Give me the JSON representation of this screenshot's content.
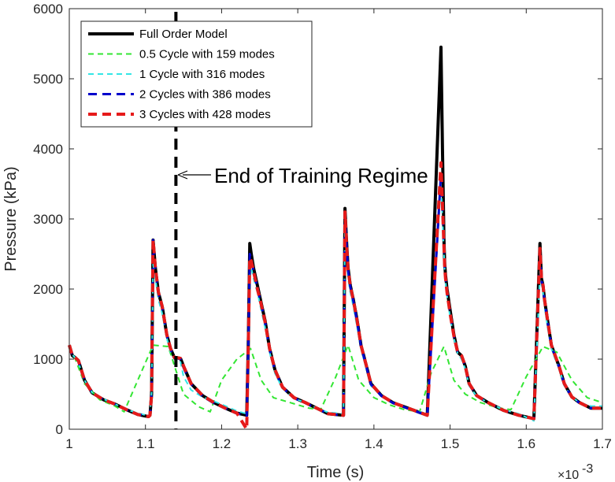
{
  "chart_data": {
    "type": "line",
    "title": "",
    "xlabel": "Time (s)",
    "ylabel": "Pressure (kPa)",
    "x_exponent": "×10⁻³",
    "x_exponent_base": "×10",
    "x_exponent_power": "-3",
    "xlim": [
      1.0,
      1.7
    ],
    "ylim": [
      0,
      6000
    ],
    "xticks": [
      1.0,
      1.1,
      1.2,
      1.3,
      1.4,
      1.5,
      1.6,
      1.7
    ],
    "xtick_labels": [
      "1",
      "1.1",
      "1.2",
      "1.3",
      "1.4",
      "1.5",
      "1.6",
      "1.7"
    ],
    "yticks": [
      0,
      1000,
      2000,
      3000,
      4000,
      5000,
      6000
    ],
    "ytick_labels": [
      "0",
      "1000",
      "2000",
      "3000",
      "4000",
      "5000",
      "6000"
    ],
    "legend_position": "top-left",
    "training_boundary_x": 1.14,
    "annotation": {
      "text": "End of Training Regime",
      "x": 1.142,
      "y": 3630
    },
    "series": [
      {
        "name": "Full Order Model",
        "color": "#000000",
        "style": "solid",
        "width": 4,
        "x": [
          1.0,
          1.004,
          1.008,
          1.012,
          1.02,
          1.03,
          1.045,
          1.06,
          1.075,
          1.09,
          1.104,
          1.106,
          1.108,
          1.11,
          1.113,
          1.117,
          1.122,
          1.128,
          1.133,
          1.138,
          1.142,
          1.146,
          1.15,
          1.16,
          1.175,
          1.19,
          1.205,
          1.22,
          1.233,
          1.235,
          1.237,
          1.239,
          1.242,
          1.247,
          1.252,
          1.257,
          1.263,
          1.27,
          1.28,
          1.295,
          1.31,
          1.325,
          1.34,
          1.36,
          1.362,
          1.364,
          1.366,
          1.369,
          1.373,
          1.378,
          1.383,
          1.389,
          1.396,
          1.41,
          1.425,
          1.44,
          1.455,
          1.47,
          1.488,
          1.49,
          1.492,
          1.493,
          1.494,
          1.496,
          1.5,
          1.505,
          1.51,
          1.515,
          1.52,
          1.525,
          1.535,
          1.55,
          1.57,
          1.59,
          1.61,
          1.618,
          1.62,
          1.622,
          1.624,
          1.628,
          1.633,
          1.638,
          1.643,
          1.65,
          1.66,
          1.67,
          1.685,
          1.7
        ],
        "y": [
          1200,
          1050,
          1020,
          980,
          700,
          520,
          420,
          360,
          280,
          210,
          180,
          200,
          500,
          2700,
          2300,
          1950,
          1750,
          1350,
          1150,
          1020,
          1020,
          1010,
          900,
          650,
          480,
          380,
          300,
          230,
          200,
          1200,
          2650,
          2500,
          2300,
          2050,
          1800,
          1550,
          1150,
          850,
          600,
          450,
          380,
          300,
          220,
          200,
          3150,
          2700,
          2300,
          2050,
          1850,
          1550,
          1200,
          950,
          650,
          480,
          380,
          320,
          260,
          200,
          5450,
          4000,
          2700,
          2350,
          2200,
          2000,
          1700,
          1350,
          1100,
          1050,
          900,
          650,
          480,
          380,
          270,
          200,
          150,
          2650,
          2150,
          2050,
          1850,
          1550,
          1200,
          1050,
          900,
          650,
          460,
          380,
          300,
          300
        ]
      },
      {
        "name": "0.5 Cycle with 159 modes",
        "color": "#33e633",
        "style": "dashed",
        "width": 2,
        "x": [
          1.0,
          1.008,
          1.02,
          1.04,
          1.06,
          1.072,
          1.09,
          1.11,
          1.13,
          1.15,
          1.17,
          1.185,
          1.2,
          1.22,
          1.238,
          1.252,
          1.268,
          1.29,
          1.315,
          1.33,
          1.35,
          1.366,
          1.38,
          1.4,
          1.42,
          1.44,
          1.46,
          1.475,
          1.492,
          1.505,
          1.52,
          1.54,
          1.565,
          1.58,
          1.6,
          1.622,
          1.64,
          1.66,
          1.68,
          1.7
        ],
        "y": [
          1150,
          1000,
          650,
          420,
          330,
          250,
          700,
          1200,
          1180,
          500,
          320,
          250,
          700,
          1000,
          1150,
          700,
          450,
          380,
          300,
          280,
          750,
          1200,
          700,
          450,
          350,
          280,
          250,
          800,
          1180,
          700,
          500,
          380,
          300,
          280,
          750,
          1180,
          1100,
          700,
          450,
          380
        ]
      },
      {
        "name": "1 Cycle with 316 modes",
        "color": "#33e6e6",
        "style": "dashed",
        "width": 2,
        "x": [
          1.0,
          1.004,
          1.008,
          1.012,
          1.02,
          1.03,
          1.045,
          1.06,
          1.075,
          1.09,
          1.104,
          1.106,
          1.108,
          1.11,
          1.113,
          1.117,
          1.122,
          1.128,
          1.133,
          1.138,
          1.142,
          1.146,
          1.15,
          1.16,
          1.175,
          1.19,
          1.205,
          1.22,
          1.233,
          1.235,
          1.237,
          1.239,
          1.242,
          1.247,
          1.252,
          1.257,
          1.263,
          1.27,
          1.28,
          1.295,
          1.31,
          1.325,
          1.34,
          1.36,
          1.362,
          1.364,
          1.366,
          1.369,
          1.373,
          1.378,
          1.383,
          1.389,
          1.396,
          1.41,
          1.425,
          1.44,
          1.455,
          1.47,
          1.488,
          1.49,
          1.492,
          1.493,
          1.494,
          1.496,
          1.5,
          1.505,
          1.51,
          1.515,
          1.52,
          1.525,
          1.535,
          1.55,
          1.57,
          1.59,
          1.61,
          1.618,
          1.62,
          1.622,
          1.624,
          1.628,
          1.633,
          1.638,
          1.643,
          1.65,
          1.66,
          1.67,
          1.685,
          1.7
        ],
        "y": [
          1180,
          1060,
          1020,
          950,
          700,
          520,
          430,
          360,
          280,
          230,
          190,
          230,
          520,
          2350,
          2150,
          1850,
          1650,
          1300,
          1100,
          1000,
          990,
          960,
          750,
          560,
          460,
          400,
          330,
          260,
          220,
          1100,
          2350,
          2300,
          2150,
          1950,
          1700,
          1450,
          1100,
          800,
          580,
          440,
          380,
          300,
          240,
          220,
          2900,
          2500,
          2150,
          1950,
          1750,
          1450,
          1150,
          900,
          620,
          470,
          380,
          320,
          260,
          220,
          3500,
          3000,
          2500,
          2250,
          2100,
          1900,
          1600,
          1300,
          1080,
          1000,
          860,
          620,
          470,
          380,
          280,
          220,
          120,
          2250,
          2050,
          1950,
          1750,
          1450,
          1150,
          1000,
          880,
          620,
          460,
          380,
          330,
          330
        ]
      },
      {
        "name": "2 Cycles with 386 modes",
        "color": "#0000cc",
        "style": "dashed",
        "width": 3,
        "x": [
          1.0,
          1.004,
          1.008,
          1.012,
          1.02,
          1.03,
          1.045,
          1.06,
          1.075,
          1.09,
          1.104,
          1.106,
          1.108,
          1.11,
          1.113,
          1.117,
          1.122,
          1.128,
          1.133,
          1.138,
          1.142,
          1.146,
          1.15,
          1.16,
          1.175,
          1.19,
          1.205,
          1.22,
          1.233,
          1.235,
          1.237,
          1.239,
          1.242,
          1.247,
          1.252,
          1.257,
          1.263,
          1.27,
          1.28,
          1.295,
          1.31,
          1.325,
          1.34,
          1.36,
          1.362,
          1.364,
          1.366,
          1.369,
          1.373,
          1.378,
          1.383,
          1.389,
          1.396,
          1.41,
          1.425,
          1.44,
          1.455,
          1.47,
          1.488,
          1.49,
          1.492,
          1.493,
          1.494,
          1.496,
          1.5,
          1.505,
          1.51,
          1.515,
          1.52,
          1.525,
          1.535,
          1.55,
          1.57,
          1.59,
          1.61,
          1.618,
          1.62,
          1.622,
          1.624,
          1.628,
          1.633,
          1.638,
          1.643,
          1.65,
          1.66,
          1.67,
          1.685,
          1.7
        ],
        "y": [
          1190,
          1050,
          1020,
          970,
          690,
          520,
          420,
          355,
          275,
          215,
          185,
          205,
          510,
          2700,
          2280,
          1930,
          1730,
          1340,
          1140,
          1010,
          1010,
          1000,
          880,
          640,
          470,
          370,
          295,
          225,
          195,
          1150,
          2500,
          2420,
          2260,
          2020,
          1780,
          1530,
          1140,
          840,
          595,
          445,
          375,
          295,
          220,
          195,
          3050,
          2650,
          2270,
          2030,
          1830,
          1530,
          1190,
          940,
          640,
          475,
          375,
          315,
          255,
          195,
          3650,
          3150,
          2600,
          2300,
          2150,
          1950,
          1650,
          1320,
          1090,
          1040,
          890,
          640,
          475,
          375,
          270,
          200,
          150,
          2500,
          2120,
          2020,
          1830,
          1530,
          1190,
          1040,
          890,
          640,
          455,
          375,
          300,
          300
        ]
      },
      {
        "name": "3 Cycles with 428 modes",
        "color": "#e61a1a",
        "style": "dashed",
        "width": 4,
        "x": [
          1.0,
          1.004,
          1.008,
          1.012,
          1.02,
          1.03,
          1.045,
          1.06,
          1.075,
          1.09,
          1.104,
          1.106,
          1.108,
          1.11,
          1.113,
          1.117,
          1.122,
          1.128,
          1.133,
          1.138,
          1.142,
          1.146,
          1.15,
          1.16,
          1.175,
          1.19,
          1.205,
          1.22,
          1.233,
          1.235,
          1.237,
          1.239,
          1.242,
          1.247,
          1.252,
          1.257,
          1.263,
          1.27,
          1.28,
          1.295,
          1.31,
          1.325,
          1.34,
          1.36,
          1.362,
          1.364,
          1.366,
          1.369,
          1.373,
          1.378,
          1.383,
          1.389,
          1.396,
          1.41,
          1.425,
          1.44,
          1.455,
          1.47,
          1.488,
          1.49,
          1.492,
          1.493,
          1.494,
          1.496,
          1.5,
          1.505,
          1.51,
          1.515,
          1.52,
          1.525,
          1.535,
          1.55,
          1.57,
          1.59,
          1.61,
          1.618,
          1.62,
          1.622,
          1.624,
          1.628,
          1.633,
          1.638,
          1.643,
          1.65,
          1.66,
          1.67,
          1.685,
          1.7
        ],
        "y": [
          1200,
          1050,
          1020,
          980,
          700,
          520,
          420,
          360,
          280,
          210,
          180,
          200,
          500,
          2700,
          2300,
          1950,
          1750,
          1350,
          1150,
          1020,
          1020,
          1010,
          900,
          650,
          480,
          380,
          300,
          230,
          0,
          1200,
          2450,
          2400,
          2250,
          2000,
          1780,
          1530,
          1150,
          850,
          600,
          450,
          380,
          300,
          220,
          200,
          3100,
          2650,
          2280,
          2040,
          1840,
          1540,
          1200,
          950,
          650,
          480,
          380,
          320,
          260,
          200,
          3800,
          3200,
          2600,
          2300,
          2150,
          1950,
          1650,
          1330,
          1100,
          1050,
          900,
          650,
          480,
          380,
          270,
          200,
          150,
          2580,
          2150,
          2050,
          1850,
          1550,
          1200,
          1050,
          900,
          650,
          460,
          380,
          300,
          300
        ]
      }
    ]
  }
}
